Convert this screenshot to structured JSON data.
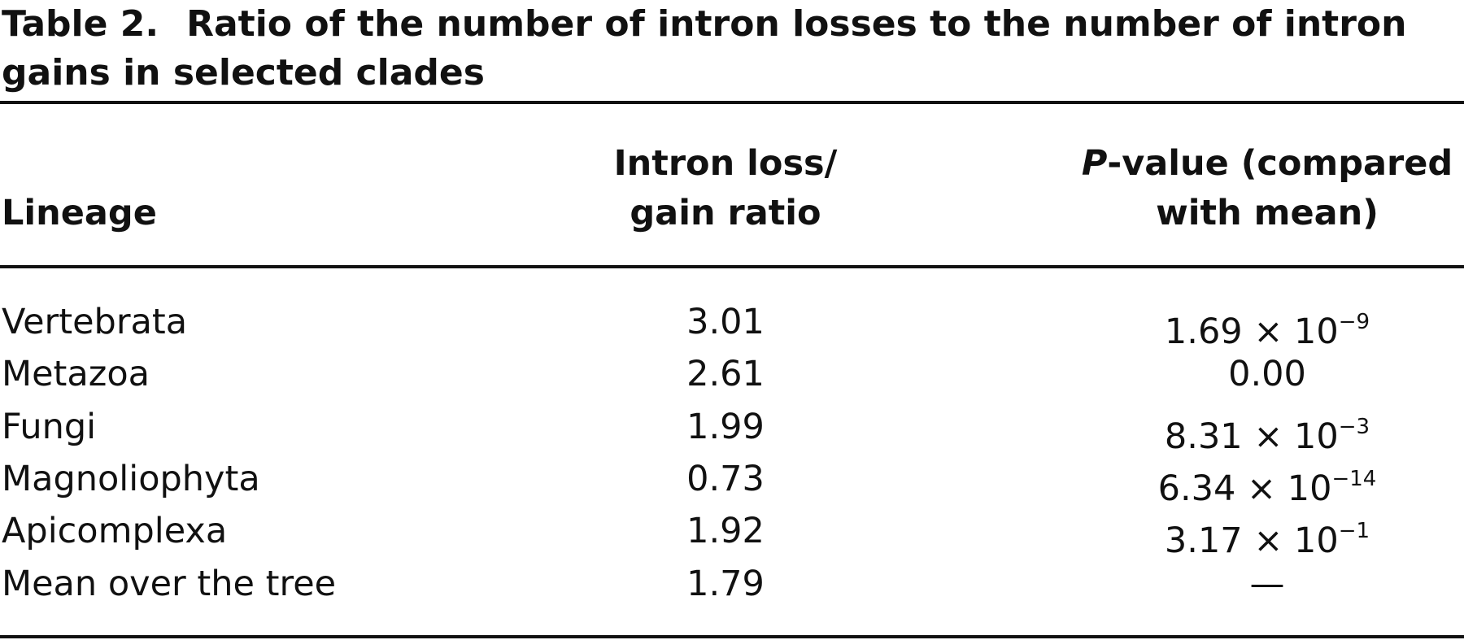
{
  "caption": {
    "label": "Table 2.",
    "text": "Ratio of the number of intron losses to the number of intron gains in selected clades"
  },
  "table": {
    "columns": [
      {
        "lines": [
          "Lineage"
        ]
      },
      {
        "lines": [
          "Intron loss/",
          "gain ratio"
        ]
      },
      {
        "lines": [
          {
            "italic": "P",
            "text": "-value (compared"
          },
          "with mean)"
        ]
      }
    ],
    "rows": [
      [
        "Vertebrata",
        "3.01",
        {
          "base": "1.69 × 10",
          "exponent": "−9"
        }
      ],
      [
        "Metazoa",
        "2.61",
        "0.00"
      ],
      [
        "Fungi",
        "1.99",
        {
          "base": "8.31 × 10",
          "exponent": "−3"
        }
      ],
      [
        "Magnoliophyta",
        "0.73",
        {
          "base": "6.34 × 10",
          "exponent": "−14"
        }
      ],
      [
        "Apicomplexa",
        "1.92",
        {
          "base": "3.17 × 10",
          "exponent": "−1"
        }
      ],
      [
        "Mean over the tree",
        "1.79",
        "—"
      ]
    ]
  }
}
